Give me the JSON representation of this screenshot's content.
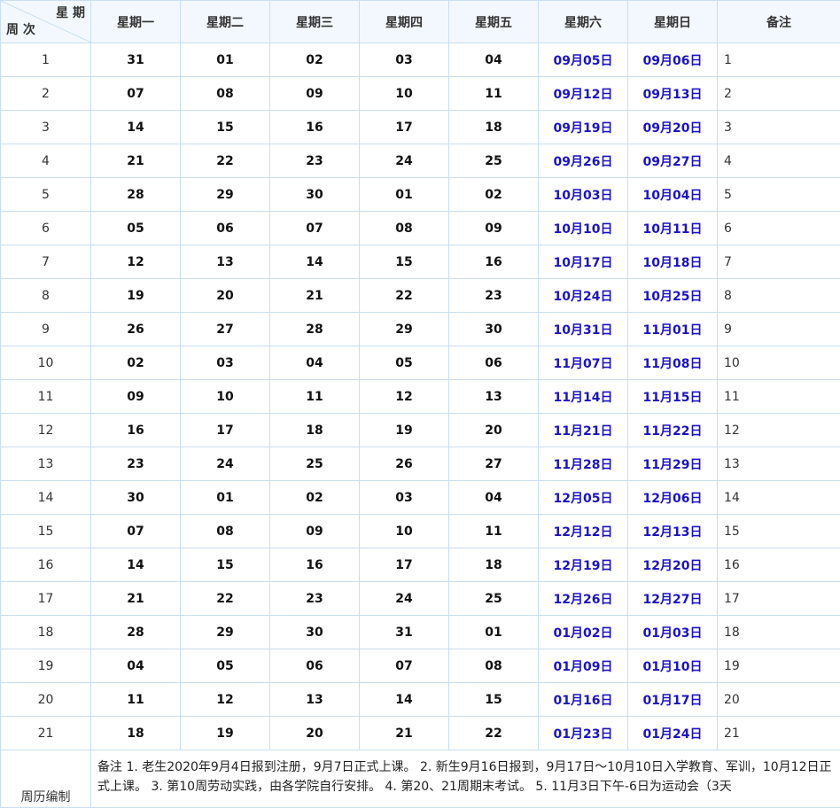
{
  "header": {
    "diag_top": "星 期",
    "diag_bottom": "周 次",
    "days": [
      "星期一",
      "星期二",
      "星期三",
      "星期四",
      "星期五",
      "星期六",
      "星期日"
    ],
    "remark": "备注"
  },
  "rows": [
    {
      "week": "1",
      "mon": "31",
      "tue": "01",
      "wed": "02",
      "thu": "03",
      "fri": "04",
      "sat": "09月05日",
      "sun": "09月06日",
      "note": "1"
    },
    {
      "week": "2",
      "mon": "07",
      "tue": "08",
      "wed": "09",
      "thu": "10",
      "fri": "11",
      "sat": "09月12日",
      "sun": "09月13日",
      "note": "2"
    },
    {
      "week": "3",
      "mon": "14",
      "tue": "15",
      "wed": "16",
      "thu": "17",
      "fri": "18",
      "sat": "09月19日",
      "sun": "09月20日",
      "note": "3"
    },
    {
      "week": "4",
      "mon": "21",
      "tue": "22",
      "wed": "23",
      "thu": "24",
      "fri": "25",
      "sat": "09月26日",
      "sun": "09月27日",
      "note": "4"
    },
    {
      "week": "5",
      "mon": "28",
      "tue": "29",
      "wed": "30",
      "thu": "01",
      "fri": "02",
      "sat": "10月03日",
      "sun": "10月04日",
      "note": "5"
    },
    {
      "week": "6",
      "mon": "05",
      "tue": "06",
      "wed": "07",
      "thu": "08",
      "fri": "09",
      "sat": "10月10日",
      "sun": "10月11日",
      "note": "6"
    },
    {
      "week": "7",
      "mon": "12",
      "tue": "13",
      "wed": "14",
      "thu": "15",
      "fri": "16",
      "sat": "10月17日",
      "sun": "10月18日",
      "note": "7"
    },
    {
      "week": "8",
      "mon": "19",
      "tue": "20",
      "wed": "21",
      "thu": "22",
      "fri": "23",
      "sat": "10月24日",
      "sun": "10月25日",
      "note": "8"
    },
    {
      "week": "9",
      "mon": "26",
      "tue": "27",
      "wed": "28",
      "thu": "29",
      "fri": "30",
      "sat": "10月31日",
      "sun": "11月01日",
      "note": "9"
    },
    {
      "week": "10",
      "mon": "02",
      "tue": "03",
      "wed": "04",
      "thu": "05",
      "fri": "06",
      "sat": "11月07日",
      "sun": "11月08日",
      "note": "10"
    },
    {
      "week": "11",
      "mon": "09",
      "tue": "10",
      "wed": "11",
      "thu": "12",
      "fri": "13",
      "sat": "11月14日",
      "sun": "11月15日",
      "note": "11"
    },
    {
      "week": "12",
      "mon": "16",
      "tue": "17",
      "wed": "18",
      "thu": "19",
      "fri": "20",
      "sat": "11月21日",
      "sun": "11月22日",
      "note": "12"
    },
    {
      "week": "13",
      "mon": "23",
      "tue": "24",
      "wed": "25",
      "thu": "26",
      "fri": "27",
      "sat": "11月28日",
      "sun": "11月29日",
      "note": "13"
    },
    {
      "week": "14",
      "mon": "30",
      "tue": "01",
      "wed": "02",
      "thu": "03",
      "fri": "04",
      "sat": "12月05日",
      "sun": "12月06日",
      "note": "14"
    },
    {
      "week": "15",
      "mon": "07",
      "tue": "08",
      "wed": "09",
      "thu": "10",
      "fri": "11",
      "sat": "12月12日",
      "sun": "12月13日",
      "note": "15"
    },
    {
      "week": "16",
      "mon": "14",
      "tue": "15",
      "wed": "16",
      "thu": "17",
      "fri": "18",
      "sat": "12月19日",
      "sun": "12月20日",
      "note": "16"
    },
    {
      "week": "17",
      "mon": "21",
      "tue": "22",
      "wed": "23",
      "thu": "24",
      "fri": "25",
      "sat": "12月26日",
      "sun": "12月27日",
      "note": "17"
    },
    {
      "week": "18",
      "mon": "28",
      "tue": "29",
      "wed": "30",
      "thu": "31",
      "fri": "01",
      "sat": "01月02日",
      "sun": "01月03日",
      "note": "18"
    },
    {
      "week": "19",
      "mon": "04",
      "tue": "05",
      "wed": "06",
      "thu": "07",
      "fri": "08",
      "sat": "01月09日",
      "sun": "01月10日",
      "note": "19"
    },
    {
      "week": "20",
      "mon": "11",
      "tue": "12",
      "wed": "13",
      "thu": "14",
      "fri": "15",
      "sat": "01月16日",
      "sun": "01月17日",
      "note": "20"
    },
    {
      "week": "21",
      "mon": "18",
      "tue": "19",
      "wed": "20",
      "thu": "21",
      "fri": "22",
      "sat": "01月23日",
      "sun": "01月24日",
      "note": "21"
    }
  ],
  "footer": {
    "label": "周历编制",
    "text": "备注 1. 老生2020年9月4日报到注册，9月7日正式上课。 2. 新生9月16日报到，9月17日～10月10日入学教育、军训，10月12日正式上课。 3. 第10周劳动实践，由各学院自行安排。 4. 第20、21周期末考试。 5. 11月3日下午-6日为运动会（3天"
  },
  "colors": {
    "weekend_text": "#1a12c8",
    "header_bg": "#f2f8fd",
    "border": "#c9def0"
  }
}
